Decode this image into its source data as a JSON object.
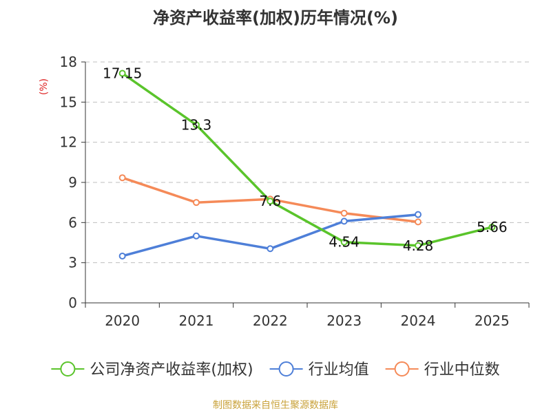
{
  "chart_data": {
    "type": "line",
    "title": "净资产收益率(加权)历年情况(%)",
    "ylabel": "(%)",
    "xlabel": "",
    "categories": [
      "2020",
      "2021",
      "2022",
      "2023",
      "2024",
      "2025"
    ],
    "ylim": [
      0,
      18
    ],
    "yticks": [
      0,
      3,
      6,
      9,
      12,
      15,
      18
    ],
    "grid": true,
    "legend_position": "bottom",
    "series": [
      {
        "name": "公司净资产收益率(加权)",
        "color": "#5ac42b",
        "values": [
          17.15,
          13.3,
          7.6,
          4.54,
          4.28,
          5.66
        ],
        "data_labels": [
          "17.15",
          "13.3",
          "7.6",
          "4.54",
          "4.28",
          "5.66"
        ]
      },
      {
        "name": "行业均值",
        "color": "#4e7fd8",
        "values": [
          3.5,
          5.0,
          4.05,
          6.1,
          6.6,
          null
        ]
      },
      {
        "name": "行业中位数",
        "color": "#f58a58",
        "values": [
          9.35,
          7.5,
          7.75,
          6.7,
          6.05,
          null
        ]
      }
    ],
    "ylabel_color": "#dd2222"
  },
  "source": "制图数据来自恒生聚源数据库"
}
